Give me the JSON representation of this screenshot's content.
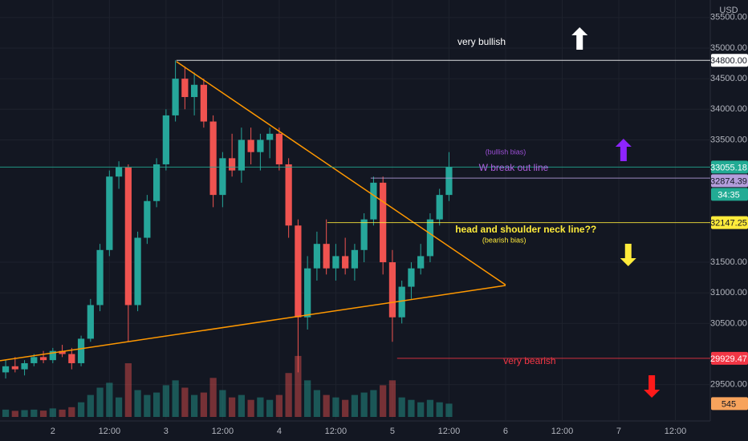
{
  "chart_data": {
    "type": "candlestick",
    "currency": "USD",
    "x": [
      -10,
      -8,
      -6,
      -4,
      -2,
      0,
      2,
      4,
      6,
      8,
      10,
      12,
      14,
      16,
      18,
      20,
      22,
      24,
      26,
      28,
      30,
      32,
      34,
      36,
      38,
      40,
      42,
      44,
      46,
      48,
      50,
      52,
      54,
      56,
      58,
      60,
      62,
      64,
      66,
      68,
      70,
      72,
      74,
      76,
      78,
      80,
      82,
      84
    ],
    "open": [
      29700,
      29800,
      29750,
      29850,
      29950,
      29900,
      30050,
      30000,
      29850,
      30250,
      30800,
      31700,
      32900,
      33050,
      30800,
      31900,
      32500,
      33100,
      33900,
      34500,
      34200,
      34400,
      33800,
      32600,
      33200,
      33000,
      33500,
      33300,
      33500,
      33600,
      33100,
      32100,
      30600,
      31400,
      31800,
      31400,
      31600,
      31400,
      31700,
      32200,
      32800,
      31500,
      30600,
      31100,
      31400,
      31600,
      32200,
      32600
    ],
    "high": [
      29900,
      29950,
      29900,
      30000,
      30050,
      30100,
      30150,
      30100,
      30300,
      30900,
      31800,
      33000,
      33150,
      33100,
      32000,
      32600,
      33200,
      34000,
      34800,
      34700,
      34600,
      34500,
      33900,
      33300,
      33600,
      33700,
      33700,
      33600,
      33700,
      33700,
      33200,
      32200,
      31600,
      32000,
      32200,
      31800,
      31900,
      31800,
      32300,
      32900,
      32900,
      31700,
      31200,
      31500,
      31800,
      32300,
      32700,
      33300
    ],
    "low": [
      29600,
      29700,
      29650,
      29800,
      29850,
      29850,
      29950,
      29750,
      29800,
      30200,
      30700,
      31600,
      32700,
      30200,
      30700,
      31800,
      32400,
      33000,
      33800,
      34000,
      33900,
      33700,
      32400,
      32400,
      32900,
      32800,
      33100,
      33000,
      33200,
      33000,
      31900,
      29700,
      30400,
      31200,
      31300,
      31200,
      31300,
      31200,
      31500,
      32100,
      31300,
      30200,
      30500,
      30900,
      31300,
      31500,
      32100,
      32500
    ],
    "close": [
      29800,
      29750,
      29850,
      29950,
      29900,
      30050,
      30000,
      29850,
      30250,
      30800,
      31700,
      32900,
      33050,
      30800,
      31900,
      32500,
      33100,
      33900,
      34500,
      34200,
      34400,
      33800,
      32600,
      33200,
      33000,
      33500,
      33300,
      33500,
      33600,
      33100,
      32100,
      30600,
      31400,
      31800,
      31400,
      31600,
      31400,
      31700,
      32200,
      32800,
      31500,
      30600,
      31100,
      31400,
      31600,
      32200,
      32600,
      33055
    ],
    "volume": [
      300,
      250,
      280,
      300,
      260,
      350,
      300,
      400,
      600,
      900,
      1200,
      1400,
      800,
      2200,
      1100,
      900,
      1000,
      1300,
      1500,
      1200,
      900,
      1000,
      1600,
      1100,
      800,
      900,
      700,
      800,
      700,
      900,
      1800,
      2500,
      1500,
      1100,
      900,
      800,
      700,
      900,
      1000,
      1100,
      1300,
      1500,
      800,
      700,
      600,
      700,
      600,
      545
    ],
    "volume_lim": [
      0,
      4600
    ],
    "up_color": "#26a69a",
    "down_color": "#ef5350",
    "xlim": [
      -11.2,
      139.4
    ],
    "xticks": [
      {
        "value": 0,
        "label": "2"
      },
      {
        "value": 12,
        "label": "12:00"
      },
      {
        "value": 24,
        "label": "3"
      },
      {
        "value": 36,
        "label": "12:00"
      },
      {
        "value": 48,
        "label": "4"
      },
      {
        "value": 60,
        "label": "12:00"
      },
      {
        "value": 72,
        "label": "5"
      },
      {
        "value": 84,
        "label": "12:00"
      },
      {
        "value": 96,
        "label": "6"
      },
      {
        "value": 108,
        "label": "12:00"
      },
      {
        "value": 120,
        "label": "7"
      },
      {
        "value": 132,
        "label": "12:00"
      }
    ],
    "ylim": [
      28906,
      35786
    ],
    "yticks": [
      {
        "value": 35500,
        "label": "35500.00"
      },
      {
        "value": 35000,
        "label": "35000.00"
      },
      {
        "value": 34500,
        "label": "34500.00"
      },
      {
        "value": 34000,
        "label": "34000.00"
      },
      {
        "value": 33500,
        "label": "33500.00"
      },
      {
        "value": 31500,
        "label": "31500.00"
      },
      {
        "value": 31000,
        "label": "31000.00"
      },
      {
        "value": 30500,
        "label": "30500.00"
      },
      {
        "value": 29500,
        "label": "29500.00"
      }
    ],
    "grid": true,
    "levels": [
      {
        "value": 34800,
        "label": "34800.00",
        "color": "#ffffff",
        "x_start": 26.2
      },
      {
        "value": 33055.18,
        "label": "33055.18",
        "color": "#22ab94",
        "x_start": -11.2,
        "countdown": "34:35"
      },
      {
        "value": 32874.39,
        "label": "32874.39",
        "color": "#b39ddb",
        "x_start": 67.4
      },
      {
        "value": 32147.25,
        "label": "32147.25",
        "color": "#ffeb3b",
        "x_start": 58.2
      },
      {
        "value": 29929.47,
        "label": "29929.47",
        "color": "#f23645",
        "x_start": 73.0
      }
    ],
    "trendlines": [
      {
        "points": [
          [
            26.2,
            34780
          ],
          [
            96.0,
            31130
          ]
        ],
        "color": "#ff9800"
      },
      {
        "points": [
          [
            -11.2,
            29890
          ],
          [
            96.0,
            31120
          ]
        ],
        "color": "#ff9800"
      }
    ],
    "annotations": [
      {
        "text": "very bullish",
        "x": 90.9,
        "y": 35091,
        "color": "#ffffff",
        "size": 12,
        "bold": false
      },
      {
        "text": "(bullish bias)",
        "x": 96.0,
        "y": 33296,
        "color": "#9c4fd6",
        "size": 9,
        "bold": false
      },
      {
        "text": "W break out line",
        "x": 97.7,
        "y": 33034,
        "color": "#b05fe0",
        "size": 12,
        "bold": false
      },
      {
        "text": "head and shoulder neck line??",
        "x": 100.3,
        "y": 32025,
        "color": "#ffeb3b",
        "size": 12,
        "bold": true
      },
      {
        "text": "(bearish bias)",
        "x": 95.7,
        "y": 31855,
        "color": "#ffeb3b",
        "size": 9,
        "bold": false
      },
      {
        "text": "very bearish",
        "x": 101.1,
        "y": 29876,
        "color": "#f23645",
        "size": 12,
        "bold": false
      }
    ],
    "arrows": [
      {
        "x": 111.7,
        "y": 35157,
        "direction": "up",
        "color": "#ffffff"
      },
      {
        "x": 121.0,
        "y": 33336,
        "direction": "up",
        "color": "#8e24ff"
      },
      {
        "x": 122.0,
        "y": 31619,
        "direction": "down",
        "color": "#ffeb3b"
      },
      {
        "x": 127.0,
        "y": 29470,
        "direction": "down",
        "color": "#ff1a1a"
      }
    ]
  }
}
